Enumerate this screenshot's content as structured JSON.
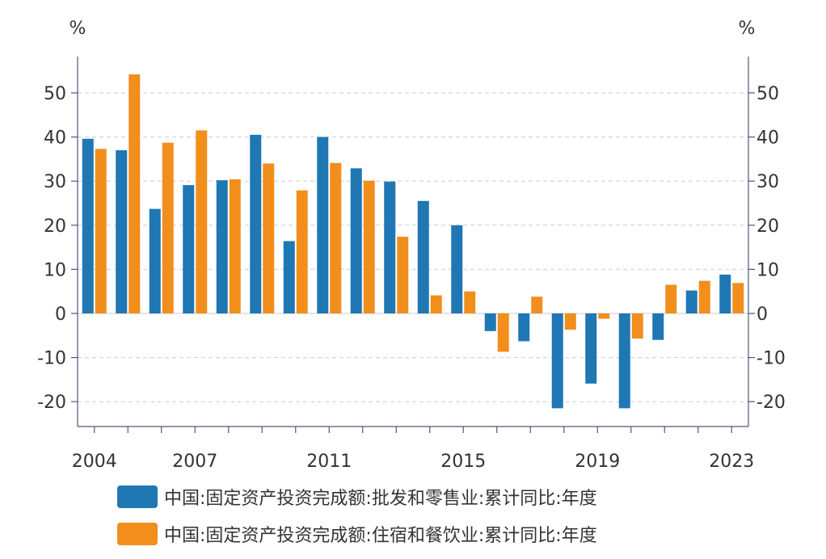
{
  "chart_data": {
    "type": "bar",
    "left_unit": "%",
    "right_unit": "%",
    "years": [
      2004,
      2005,
      2006,
      2007,
      2008,
      2009,
      2010,
      2011,
      2012,
      2013,
      2014,
      2015,
      2016,
      2017,
      2018,
      2019,
      2020,
      2021,
      2022,
      2023
    ],
    "x_tick_labels": [
      "2004",
      "2007",
      "2011",
      "2015",
      "2019",
      "2023"
    ],
    "y_ticks": [
      -20,
      -10,
      0,
      10,
      20,
      30,
      40,
      50
    ],
    "y_tick_labels": [
      "-20",
      "-10",
      "0",
      "10",
      "20",
      "30",
      "40",
      "50"
    ],
    "ylim": [
      -25,
      58
    ],
    "gridlines": "dashed",
    "series": [
      {
        "name": "中国:固定资产投资完成额:批发和零售业:累计同比:年度",
        "color": "#1f77b4",
        "values": [
          39.6,
          37.0,
          23.7,
          29.1,
          30.2,
          40.5,
          16.4,
          40.0,
          32.9,
          29.9,
          25.5,
          20.0,
          -4.0,
          -6.3,
          -21.5,
          -15.9,
          -21.5,
          -6.0,
          5.2,
          8.8
        ]
      },
      {
        "name": "中国:固定资产投资完成额:住宿和餐饮业:累计同比:年度",
        "color": "#f28e1c",
        "values": [
          37.3,
          54.2,
          38.7,
          41.5,
          30.4,
          34.0,
          27.9,
          34.1,
          30.1,
          17.4,
          4.1,
          5.0,
          -8.7,
          3.8,
          -3.7,
          -1.2,
          -5.7,
          6.5,
          7.4,
          6.9
        ]
      }
    ]
  }
}
